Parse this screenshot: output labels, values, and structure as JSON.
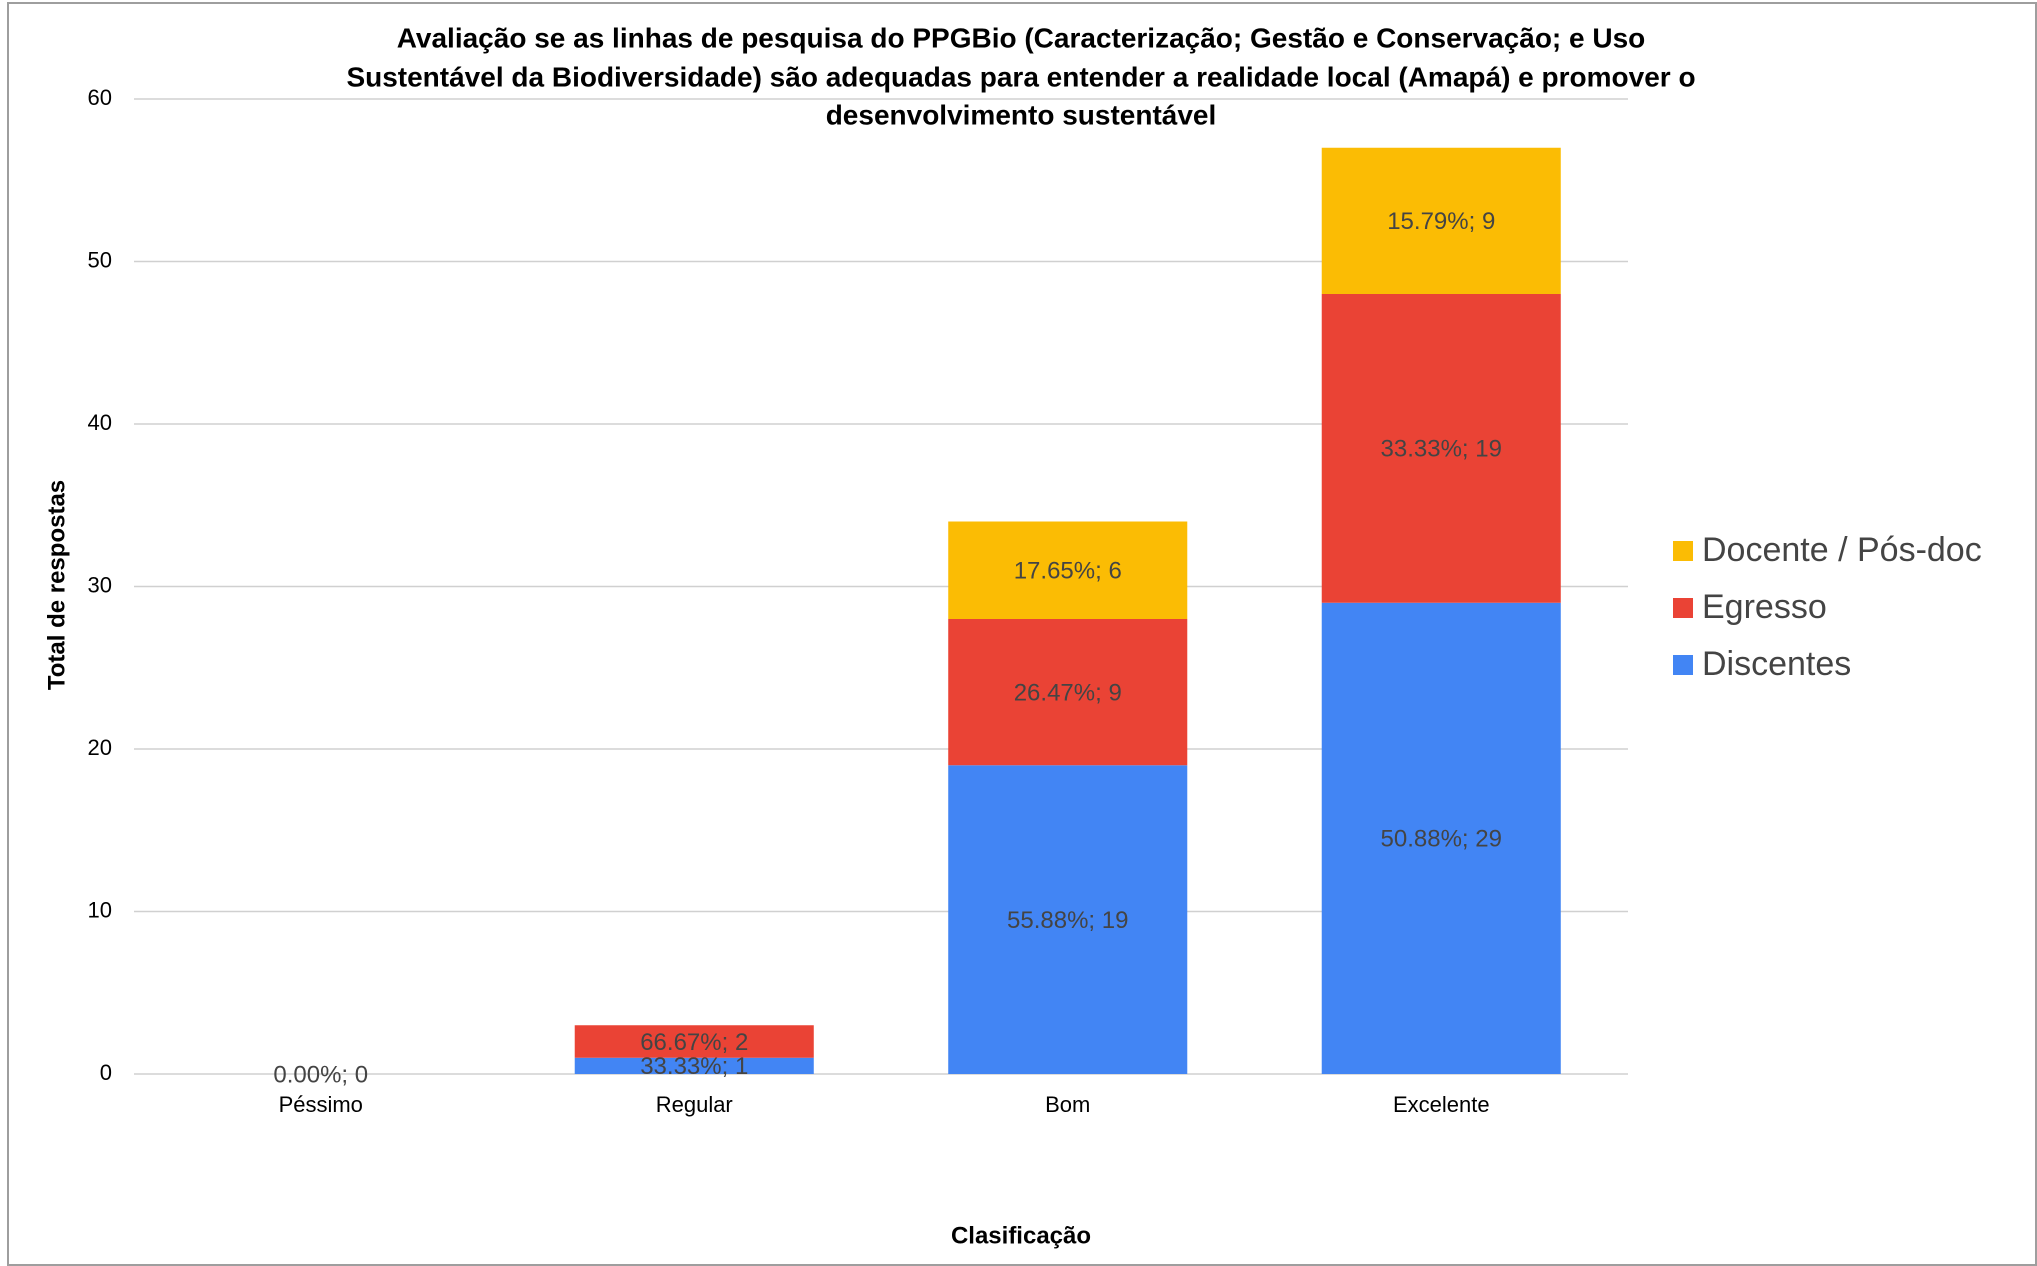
{
  "chart_data": {
    "type": "stacked_bar",
    "title": [
      "Avaliação se as linhas de pesquisa do PPGBio (Caracterização; Gestão e Conservação; e Uso",
      "Sustentável da Biodiversidade) são adequadas para entender a realidade local (Amapá)  e promover o",
      "desenvolvimento sustentável"
    ],
    "x_label": "Clasificação",
    "y_label": "Total de respostas",
    "categories": [
      "Péssimo",
      "Regular",
      "Bom",
      "Excelente"
    ],
    "series": [
      {
        "name": "Discentes",
        "color": "#4285f4",
        "values": [
          0,
          1,
          19,
          29
        ],
        "value_labels": [
          "0.00%; 0",
          "33.33%; 1",
          "55.88%; 19",
          "50.88%; 29"
        ]
      },
      {
        "name": "Egresso",
        "color": "#ea4335",
        "values": [
          null,
          2,
          9,
          19
        ],
        "value_labels": [
          null,
          "66.67%; 2",
          "26.47%; 9",
          "33.33%; 19"
        ]
      },
      {
        "name": "Docente / Pós-doc",
        "color": "#fbbc04",
        "values": [
          null,
          null,
          6,
          9
        ],
        "value_labels": [
          null,
          null,
          "17.65%; 6",
          "15.79%; 9"
        ]
      }
    ],
    "ylim": [
      0,
      60
    ],
    "yticks": [
      0,
      10,
      20,
      30,
      40,
      50,
      60
    ],
    "grid": true,
    "legend": "right"
  }
}
